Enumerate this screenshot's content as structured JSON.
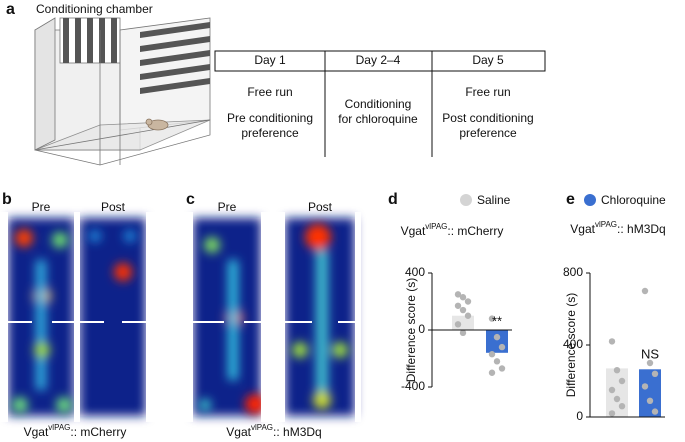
{
  "panel_labels": [
    "a",
    "b",
    "c",
    "d",
    "e"
  ],
  "panel_a": {
    "chamber_title": "Conditioning chamber",
    "timeline": [
      {
        "day": "Day 1",
        "lines": [
          "Free run",
          "Pre conditioning",
          "preference"
        ]
      },
      {
        "day": "Day 2–4",
        "lines": [
          "Conditioning",
          "for chloroquine"
        ]
      },
      {
        "day": "Day 5",
        "lines": [
          "Free run",
          "Post conditioning",
          "preference"
        ]
      }
    ]
  },
  "panel_b": {
    "headers": [
      "Pre",
      "Post"
    ],
    "caption": {
      "base": "Vgat",
      "sup": "vlPAG",
      "rest": ":: mCherry"
    }
  },
  "panel_c": {
    "headers": [
      "Pre",
      "Post"
    ],
    "caption": {
      "base": "Vgat",
      "sup": "vlPAG",
      "rest": ":: hM3Dq"
    }
  },
  "chart_data": [
    {
      "type": "bar",
      "title": {
        "base": "Vgat",
        "sup": "vlPAG",
        "rest": ":: mCherry"
      },
      "legend": {
        "name": "Saline",
        "color": "#d4d4d4"
      },
      "values": [
        100,
        -160
      ],
      "colors": [
        "#e6e6e6",
        "#3a6fd0"
      ],
      "points": [
        [
          250,
          230,
          200,
          170,
          140,
          100,
          40,
          -20
        ],
        [
          80,
          -50,
          -120,
          -170,
          -220,
          -270,
          -300
        ]
      ],
      "point_color": "#b4b4b4",
      "annotation": "**",
      "ylabel": "Difference score (s)",
      "ylim": [
        -400,
        400
      ],
      "yticks": [
        -400,
        0,
        400
      ]
    },
    {
      "type": "bar",
      "title": {
        "base": "Vgat",
        "sup": "vlPAG",
        "rest": ":: hM3Dq"
      },
      "legend": {
        "name": "Chloroquine",
        "color": "#3a6fd0"
      },
      "values": [
        270,
        265
      ],
      "colors": [
        "#e6e6e6",
        "#3a6fd0"
      ],
      "points": [
        [
          420,
          260,
          200,
          150,
          100,
          60,
          20
        ],
        [
          700,
          300,
          240,
          170,
          90,
          30
        ]
      ],
      "point_color": "#b4b4b4",
      "annotation": "NS",
      "ylabel": "Difference score (s)",
      "ylim": [
        0,
        800
      ],
      "yticks": [
        0,
        400,
        800
      ]
    }
  ]
}
